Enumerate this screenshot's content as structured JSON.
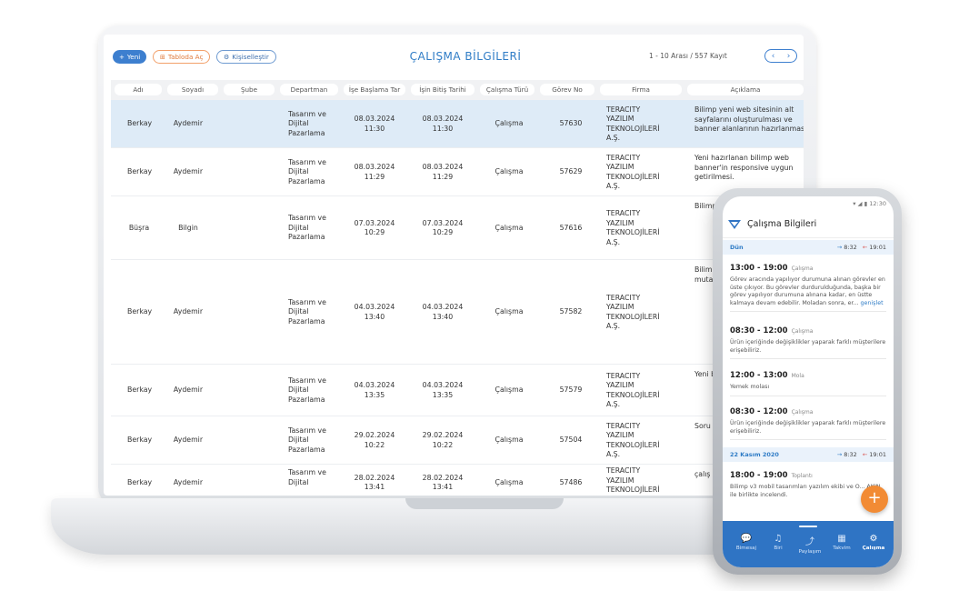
{
  "toolbar": {
    "new_label": "Yeni",
    "table_label": "Tabloda Aç",
    "custom_label": "Kişiselleştir"
  },
  "page_title": "ÇALIŞMA BİLGİLERİ",
  "paging": {
    "range": "1 - 10 Arası  /  557 Kayıt"
  },
  "columns": [
    "Adı",
    "Soyadı",
    "Şube",
    "Departman",
    "İşe Başlama Tar",
    "İşin Bitiş Tarihi",
    "Çalışma Türü",
    "Görev No",
    "Firma",
    "Açıklama"
  ],
  "rows": [
    {
      "ad": "Berkay",
      "soyad": "Aydemir",
      "dep": "Tasarım ve\nDijital\nPazarlama",
      "bas": "08.03.2024\n11:30",
      "bit": "08.03.2024\n11:30",
      "tur": "Çalışma",
      "gorev": "57630",
      "firma": "TERACITY\nYAZILIM\nTEKNOLOJİLERİ\nA.Ş.",
      "aciklama": "Bilimp yeni web sitesinin alt sayfalarını oluşturulması ve banner alanlarının hazırlanması"
    },
    {
      "ad": "Berkay",
      "soyad": "Aydemir",
      "dep": "Tasarım ve\nDijital\nPazarlama",
      "bas": "08.03.2024\n11:29",
      "bit": "08.03.2024\n11:29",
      "tur": "Çalışma",
      "gorev": "57629",
      "firma": "TERACITY\nYAZILIM\nTEKNOLOJİLERİ\nA.Ş.",
      "aciklama": "Yeni hazırlanan bilimp web banner'in responsive uygun getirilmesi."
    },
    {
      "ad": "Büşra",
      "soyad": "Bilgin",
      "dep": "Tasarım ve\nDijital\nPazarlama",
      "bas": "07.03.2024\n10:29",
      "bit": "07.03.2024\n10:29",
      "tur": "Çalışma",
      "gorev": "57616",
      "firma": "TERACITY\nYAZILIM\nTEKNOLOJİLERİ\nA.Ş.",
      "aciklama": "Bilimp Erkut çalışt görün üzeri"
    },
    {
      "ad": "Berkay",
      "soyad": "Aydemir",
      "dep": "Tasarım ve\nDijital\nPazarlama",
      "bas": "04.03.2024\n13:40",
      "bit": "04.03.2024\n13:40",
      "tur": "Çalışma",
      "gorev": "57582",
      "firma": "TERACITY\nYAZILIM\nTEKNOLOJİLERİ\nA.Ş.",
      "aciklama": "Bilim arası açısı üzeri olara yönte muta hakk"
    },
    {
      "ad": "Berkay",
      "soyad": "Aydemir",
      "dep": "Tasarım ve\nDijital\nPazarlama",
      "bas": "04.03.2024\n13:35",
      "bit": "04.03.2024\n13:35",
      "tur": "Çalışma",
      "gorev": "57579",
      "firma": "TERACITY\nYAZILIM\nTEKNOLOJİLERİ\nA.Ş.",
      "aciklama": "Yeni bann uygu"
    },
    {
      "ad": "Berkay",
      "soyad": "Aydemir",
      "dep": "Tasarım ve\nDijital\nPazarlama",
      "bas": "29.02.2024\n10:22",
      "bit": "29.02.2024\n10:22",
      "tur": "Çalışma",
      "gorev": "57504",
      "firma": "TERACITY\nYAZILIM\nTEKNOLOJİLERİ\nA.Ş.",
      "aciklama": "Soru"
    },
    {
      "ad": "Berkay",
      "soyad": "Aydemir",
      "dep": "Tasarım ve\nDijital",
      "bas": "28.02.2024\n13:41",
      "bit": "28.02.2024\n13:41",
      "tur": "Çalışma",
      "gorev": "57486",
      "firma": "TERACITY\nYAZILIM\nTEKNOLOJİLERİ",
      "aciklama": "çalış"
    }
  ],
  "phone": {
    "status": "▾ ◢ ▮ 12:30",
    "title": "Çalışma Bilgileri",
    "day1": {
      "label": "Dün",
      "in": "8:32",
      "out": "19:01"
    },
    "day2": {
      "label": "22 Kasım 2020",
      "in": "8:32",
      "out": "19:01"
    },
    "entries": [
      {
        "time": "13:00 - 19:00",
        "type": "Çalışma",
        "desc": "Görev aracında yapılıyor durumuna alınan görevler en üste çıkıyor. Bu görevler durdurulduğunda, başka bir görev yapılıyor durumuna alınana kadar, en üstte kalmaya devam edebilir. Moladan sonra, er...",
        "more": "genişlet"
      },
      {
        "time": "08:30 - 12:00",
        "type": "Çalışma",
        "desc": "Ürün içeriğinde değişiklikler yaparak farklı müşterilere erişebiliriz."
      },
      {
        "time": "12:00 - 13:00",
        "type": "Mola",
        "desc": "Yemek molası"
      },
      {
        "time": "08:30 - 12:00",
        "type": "Çalışma",
        "desc": "Ürün içeriğinde değişiklikler yaparak farklı müşterilere erişebiliriz."
      },
      {
        "time": "18:00 - 19:00",
        "type": "Toplantı",
        "desc": "Bilimp v3 mobil tasarımları yazılım ekibi ve O... AKIN ile birlikte incelendi."
      }
    ],
    "fab": "+",
    "nav": [
      {
        "label": "Bimesaj",
        "icon": "💬"
      },
      {
        "label": "Biri",
        "icon": "♫"
      },
      {
        "label": "Paylaşım",
        "icon": "⤴"
      },
      {
        "label": "Takvim",
        "icon": "▦"
      },
      {
        "label": "Çalışma",
        "icon": "⚙"
      }
    ]
  }
}
